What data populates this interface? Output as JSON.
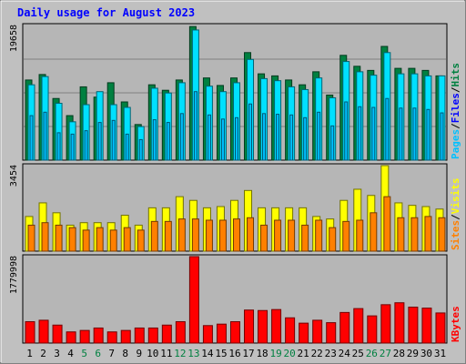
{
  "chart_data": {
    "type": "bar",
    "title": "Daily usage for August 2023",
    "colors": {
      "background": "#c0c0c0",
      "plot": "#b6b6b6",
      "frame": "#000000",
      "title": "#0000ff",
      "hits": "#008040",
      "files": "#00e0ff",
      "pages": "#00c0ff",
      "visits": "#ffff00",
      "sites": "#ff8000",
      "kbytes": "#ff0000",
      "weekend_label": "#008040"
    },
    "x": {
      "categories": [
        "1",
        "2",
        "3",
        "4",
        "5",
        "6",
        "7",
        "8",
        "9",
        "10",
        "11",
        "12",
        "13",
        "14",
        "15",
        "16",
        "17",
        "18",
        "19",
        "20",
        "21",
        "22",
        "23",
        "24",
        "25",
        "26",
        "27",
        "28",
        "29",
        "30",
        "31"
      ],
      "weekend_days": [
        "5",
        "6",
        "12",
        "13",
        "19",
        "20",
        "26",
        "27"
      ]
    },
    "panels": [
      {
        "id": "hits-files-pages",
        "ylim": [
          0,
          19658
        ],
        "max_label": "19658",
        "legend": [
          {
            "name": "Pages",
            "color": "#00c0ff"
          },
          {
            "name": "Files",
            "color": "#0000ff"
          },
          {
            "name": "Hits",
            "color": "#008040"
          }
        ],
        "separator": "/",
        "series": [
          {
            "name": "Hits",
            "values": [
              11700,
              12500,
              9000,
              6500,
              10700,
              9200,
              11300,
              8500,
              5200,
              11000,
              10200,
              11700,
              19500,
              12000,
              10900,
              12000,
              15700,
              12600,
              12300,
              11700,
              11000,
              12900,
              9500,
              15300,
              13700,
              13100,
              16600,
              13400,
              13400,
              13100,
              12300
            ]
          },
          {
            "name": "Files",
            "values": [
              11000,
              12200,
              8300,
              5600,
              8100,
              10000,
              8100,
              7700,
              4900,
              10500,
              9800,
              11300,
              19000,
              10800,
              10000,
              11300,
              14700,
              11900,
              11600,
              10700,
              10300,
              12000,
              9100,
              14400,
              12900,
              12400,
              15700,
              12600,
              12600,
              12300,
              12300
            ]
          },
          {
            "name": "Pages",
            "values": [
              6500,
              7000,
              4000,
              3800,
              4300,
              5500,
              5800,
              3800,
              3000,
              5900,
              5500,
              6800,
              10000,
              6600,
              6000,
              6200,
              8200,
              6800,
              6700,
              6600,
              6200,
              7000,
              5000,
              8500,
              7800,
              7700,
              9000,
              7600,
              7600,
              7400,
              6900
            ]
          }
        ]
      },
      {
        "id": "visits-sites",
        "ylim": [
          0,
          3454
        ],
        "max_label": "3454",
        "legend": [
          {
            "name": "Sites",
            "color": "#ff8000"
          },
          {
            "name": "Visits",
            "color": "#ffff00"
          }
        ],
        "separator": "/",
        "series": [
          {
            "name": "Visits",
            "values": [
              1400,
              1950,
              1550,
              1050,
              1150,
              1150,
              1150,
              1450,
              1050,
              1750,
              1750,
              2200,
              2050,
              1750,
              1800,
              2050,
              2450,
              1750,
              1750,
              1750,
              1750,
              1400,
              1300,
              2050,
              2500,
              2250,
              3454,
              1950,
              1850,
              1800,
              1700
            ]
          },
          {
            "name": "Sites",
            "values": [
              1050,
              1150,
              1050,
              950,
              850,
              950,
              850,
              950,
              850,
              1200,
              1200,
              1300,
              1300,
              1250,
              1250,
              1300,
              1350,
              1050,
              1250,
              1250,
              1050,
              1250,
              950,
              1200,
              1250,
              1550,
              2200,
              1350,
              1350,
              1400,
              1350
            ]
          }
        ]
      },
      {
        "id": "kbytes",
        "ylim": [
          0,
          1779998
        ],
        "max_label": "1779998",
        "legend": [
          {
            "name": "KBytes",
            "color": "#ff0000"
          }
        ],
        "separator": "",
        "series": [
          {
            "name": "KBytes",
            "values": [
              440000,
              470000,
              370000,
              230000,
              260000,
              310000,
              230000,
              260000,
              310000,
              310000,
              370000,
              440000,
              1779998,
              360000,
              390000,
              440000,
              680000,
              670000,
              690000,
              520000,
              410000,
              470000,
              420000,
              630000,
              710000,
              560000,
              790000,
              830000,
              740000,
              720000,
              620000
            ]
          }
        ]
      }
    ]
  }
}
